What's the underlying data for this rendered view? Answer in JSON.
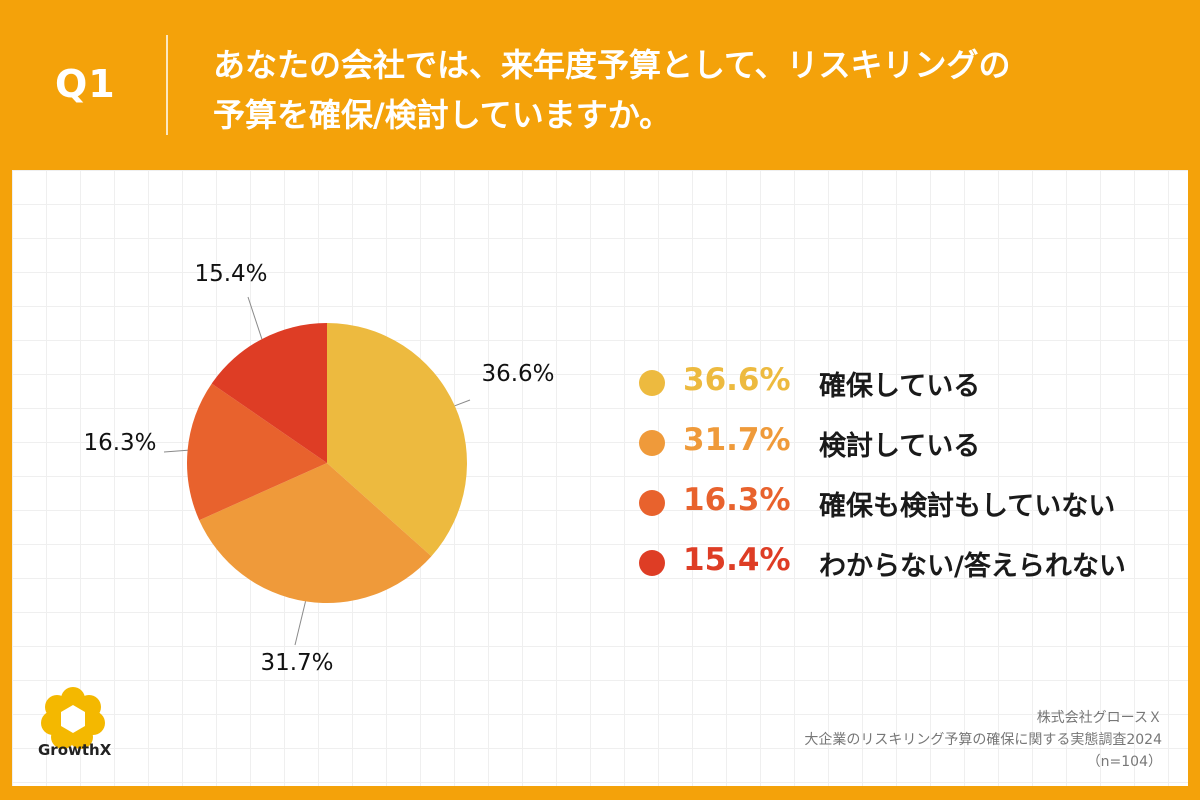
{
  "header": {
    "q_label": "Q1",
    "question_line1": "あなたの会社では、来年度予算として、リスキリングの",
    "question_line2": "予算を確保/検討していますか。"
  },
  "chart_data": {
    "type": "pie",
    "title": "あなたの会社では、来年度予算として、リスキリングの予算を確保/検討していますか。",
    "start": "12 o'clock, clockwise",
    "slices": [
      {
        "label": "確保している",
        "value": 36.6,
        "display": "36.6%",
        "color": "#EDBA3F"
      },
      {
        "label": "検討している",
        "value": 31.7,
        "display": "31.7%",
        "color": "#EF9A3A"
      },
      {
        "label": "確保も検討もしていない",
        "value": 16.3,
        "display": "16.3%",
        "color": "#E8622D"
      },
      {
        "label": "わからない/答えられない",
        "value": 15.4,
        "display": "15.4%",
        "color": "#DE3D25"
      }
    ]
  },
  "legend": [
    {
      "pct": "36.6%",
      "label": "確保している",
      "color": "#EDBA3F"
    },
    {
      "pct": "31.7%",
      "label": "検討している",
      "color": "#EF9A3A"
    },
    {
      "pct": "16.3%",
      "label": "確保も検討もしていない",
      "color": "#E8622D"
    },
    {
      "pct": "15.4%",
      "label": "わからない/答えられない",
      "color": "#DE3D25"
    }
  ],
  "branding": {
    "logo_text": "GrowthX",
    "logo_color": "#F4B800"
  },
  "source": {
    "company": "株式会社グロースＸ",
    "survey": "大企業のリスキリング予算の確保に関する実態調査2024",
    "sample": "（n=104）"
  }
}
